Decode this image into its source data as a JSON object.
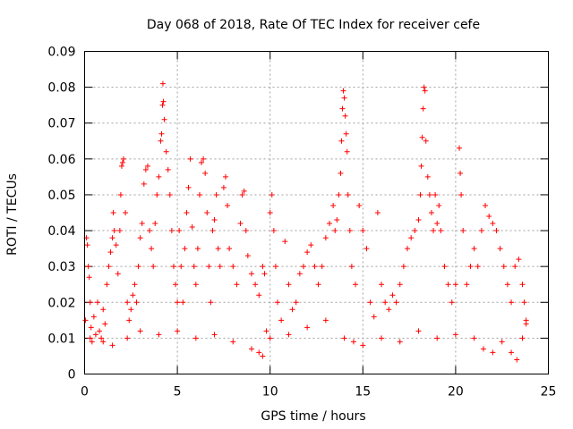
{
  "chart_data": {
    "type": "scatter",
    "title": "Day 068 of 2018, Rate Of TEC Index for receiver cefe",
    "xlabel": "GPS time / hours",
    "ylabel": "ROTI / TECUs",
    "xlim": [
      0,
      25
    ],
    "ylim": [
      0,
      0.09
    ],
    "xticks": [
      0,
      5,
      10,
      15,
      20,
      25
    ],
    "yticks": [
      0,
      0.01,
      0.02,
      0.03,
      0.04,
      0.05,
      0.06,
      0.07,
      0.08,
      0.09
    ],
    "ytick_labels": [
      "0",
      "0.01",
      "0.02",
      "0.03",
      "0.04",
      "0.05",
      "0.06",
      "0.07",
      "0.08",
      "0.09"
    ],
    "grid": true,
    "marker": "+",
    "marker_color": "#ff0000",
    "series": [
      {
        "name": "ROTI",
        "points": [
          [
            0.05,
            0.015
          ],
          [
            0.1,
            0.038
          ],
          [
            0.15,
            0.036
          ],
          [
            0.2,
            0.03
          ],
          [
            0.25,
            0.027
          ],
          [
            0.3,
            0.02
          ],
          [
            0.35,
            0.013
          ],
          [
            0.4,
            0.009
          ],
          [
            0.5,
            0.016
          ],
          [
            0.6,
            0.011
          ],
          [
            0.7,
            0.02
          ],
          [
            0.8,
            0.012
          ],
          [
            0.9,
            0.01
          ],
          [
            1.0,
            0.018
          ],
          [
            1.1,
            0.014
          ],
          [
            1.2,
            0.025
          ],
          [
            1.3,
            0.03
          ],
          [
            1.4,
            0.034
          ],
          [
            1.5,
            0.038
          ],
          [
            1.55,
            0.045
          ],
          [
            1.6,
            0.04
          ],
          [
            1.7,
            0.036
          ],
          [
            1.8,
            0.028
          ],
          [
            1.9,
            0.04
          ],
          [
            1.95,
            0.05
          ],
          [
            2.0,
            0.058
          ],
          [
            2.05,
            0.059
          ],
          [
            2.1,
            0.06
          ],
          [
            2.2,
            0.045
          ],
          [
            2.3,
            0.02
          ],
          [
            2.4,
            0.015
          ],
          [
            2.5,
            0.018
          ],
          [
            2.6,
            0.022
          ],
          [
            2.7,
            0.025
          ],
          [
            2.8,
            0.02
          ],
          [
            2.9,
            0.03
          ],
          [
            3.0,
            0.038
          ],
          [
            3.1,
            0.042
          ],
          [
            3.2,
            0.053
          ],
          [
            3.3,
            0.057
          ],
          [
            3.4,
            0.058
          ],
          [
            3.5,
            0.04
          ],
          [
            3.6,
            0.035
          ],
          [
            3.7,
            0.03
          ],
          [
            3.8,
            0.042
          ],
          [
            3.9,
            0.05
          ],
          [
            4.0,
            0.055
          ],
          [
            4.1,
            0.065
          ],
          [
            4.15,
            0.067
          ],
          [
            4.2,
            0.075
          ],
          [
            4.22,
            0.081
          ],
          [
            4.25,
            0.076
          ],
          [
            4.3,
            0.071
          ],
          [
            4.4,
            0.062
          ],
          [
            4.5,
            0.057
          ],
          [
            4.6,
            0.05
          ],
          [
            4.7,
            0.04
          ],
          [
            4.8,
            0.03
          ],
          [
            4.9,
            0.025
          ],
          [
            5.0,
            0.02
          ],
          [
            5.1,
            0.04
          ],
          [
            5.2,
            0.03
          ],
          [
            5.3,
            0.02
          ],
          [
            5.4,
            0.035
          ],
          [
            5.5,
            0.045
          ],
          [
            5.6,
            0.052
          ],
          [
            5.7,
            0.06
          ],
          [
            5.8,
            0.041
          ],
          [
            5.9,
            0.03
          ],
          [
            6.0,
            0.025
          ],
          [
            6.1,
            0.035
          ],
          [
            6.2,
            0.05
          ],
          [
            6.3,
            0.059
          ],
          [
            6.4,
            0.06
          ],
          [
            6.5,
            0.056
          ],
          [
            6.6,
            0.045
          ],
          [
            6.7,
            0.03
          ],
          [
            6.8,
            0.02
          ],
          [
            6.9,
            0.04
          ],
          [
            7.0,
            0.043
          ],
          [
            7.1,
            0.05
          ],
          [
            7.2,
            0.035
          ],
          [
            7.3,
            0.03
          ],
          [
            7.5,
            0.052
          ],
          [
            7.6,
            0.055
          ],
          [
            7.7,
            0.047
          ],
          [
            7.8,
            0.035
          ],
          [
            8.0,
            0.03
          ],
          [
            8.2,
            0.025
          ],
          [
            8.4,
            0.042
          ],
          [
            8.5,
            0.05
          ],
          [
            8.6,
            0.051
          ],
          [
            8.7,
            0.04
          ],
          [
            8.8,
            0.033
          ],
          [
            9.0,
            0.028
          ],
          [
            9.2,
            0.025
          ],
          [
            9.4,
            0.022
          ],
          [
            9.6,
            0.03
          ],
          [
            9.7,
            0.028
          ],
          [
            9.8,
            0.012
          ],
          [
            10.0,
            0.045
          ],
          [
            10.1,
            0.05
          ],
          [
            10.2,
            0.04
          ],
          [
            10.3,
            0.03
          ],
          [
            10.4,
            0.02
          ],
          [
            10.6,
            0.015
          ],
          [
            10.8,
            0.037
          ],
          [
            11.0,
            0.025
          ],
          [
            11.2,
            0.018
          ],
          [
            11.4,
            0.02
          ],
          [
            11.6,
            0.028
          ],
          [
            11.8,
            0.03
          ],
          [
            12.0,
            0.034
          ],
          [
            12.2,
            0.036
          ],
          [
            12.4,
            0.03
          ],
          [
            12.6,
            0.025
          ],
          [
            12.8,
            0.03
          ],
          [
            13.0,
            0.038
          ],
          [
            13.2,
            0.042
          ],
          [
            13.4,
            0.047
          ],
          [
            13.5,
            0.04
          ],
          [
            13.6,
            0.043
          ],
          [
            13.7,
            0.05
          ],
          [
            13.8,
            0.056
          ],
          [
            13.85,
            0.065
          ],
          [
            13.9,
            0.074
          ],
          [
            13.95,
            0.079
          ],
          [
            14.0,
            0.077
          ],
          [
            14.05,
            0.072
          ],
          [
            14.1,
            0.067
          ],
          [
            14.15,
            0.062
          ],
          [
            14.2,
            0.05
          ],
          [
            14.3,
            0.04
          ],
          [
            14.4,
            0.03
          ],
          [
            14.6,
            0.025
          ],
          [
            14.8,
            0.047
          ],
          [
            15.0,
            0.04
          ],
          [
            15.2,
            0.035
          ],
          [
            15.4,
            0.02
          ],
          [
            15.6,
            0.016
          ],
          [
            15.8,
            0.045
          ],
          [
            16.0,
            0.025
          ],
          [
            16.2,
            0.02
          ],
          [
            16.4,
            0.018
          ],
          [
            16.6,
            0.022
          ],
          [
            16.8,
            0.02
          ],
          [
            17.0,
            0.025
          ],
          [
            17.2,
            0.03
          ],
          [
            17.4,
            0.035
          ],
          [
            17.6,
            0.038
          ],
          [
            17.8,
            0.04
          ],
          [
            18.0,
            0.043
          ],
          [
            18.1,
            0.05
          ],
          [
            18.15,
            0.058
          ],
          [
            18.2,
            0.066
          ],
          [
            18.25,
            0.074
          ],
          [
            18.3,
            0.08
          ],
          [
            18.35,
            0.079
          ],
          [
            18.4,
            0.065
          ],
          [
            18.5,
            0.055
          ],
          [
            18.6,
            0.05
          ],
          [
            18.7,
            0.045
          ],
          [
            18.8,
            0.04
          ],
          [
            18.9,
            0.05
          ],
          [
            19.0,
            0.042
          ],
          [
            19.1,
            0.047
          ],
          [
            19.2,
            0.04
          ],
          [
            19.4,
            0.03
          ],
          [
            19.6,
            0.025
          ],
          [
            19.8,
            0.02
          ],
          [
            20.0,
            0.025
          ],
          [
            20.2,
            0.063
          ],
          [
            20.25,
            0.056
          ],
          [
            20.3,
            0.05
          ],
          [
            20.4,
            0.04
          ],
          [
            20.6,
            0.025
          ],
          [
            20.8,
            0.03
          ],
          [
            21.0,
            0.035
          ],
          [
            21.2,
            0.03
          ],
          [
            21.4,
            0.04
          ],
          [
            21.6,
            0.047
          ],
          [
            21.8,
            0.044
          ],
          [
            22.0,
            0.042
          ],
          [
            22.2,
            0.04
          ],
          [
            22.4,
            0.035
          ],
          [
            22.6,
            0.03
          ],
          [
            22.8,
            0.025
          ],
          [
            23.0,
            0.02
          ],
          [
            23.2,
            0.03
          ],
          [
            23.4,
            0.032
          ],
          [
            23.6,
            0.025
          ],
          [
            23.7,
            0.02
          ],
          [
            0.3,
            0.01
          ],
          [
            1.0,
            0.009
          ],
          [
            1.5,
            0.008
          ],
          [
            2.3,
            0.01
          ],
          [
            3.0,
            0.012
          ],
          [
            4.0,
            0.011
          ],
          [
            5.0,
            0.012
          ],
          [
            6.0,
            0.01
          ],
          [
            7.0,
            0.011
          ],
          [
            8.0,
            0.009
          ],
          [
            9.0,
            0.007
          ],
          [
            9.4,
            0.006
          ],
          [
            9.6,
            0.005
          ],
          [
            10.0,
            0.01
          ],
          [
            11.0,
            0.011
          ],
          [
            12.0,
            0.013
          ],
          [
            13.0,
            0.015
          ],
          [
            14.0,
            0.01
          ],
          [
            14.5,
            0.009
          ],
          [
            15.0,
            0.008
          ],
          [
            16.0,
            0.01
          ],
          [
            17.0,
            0.009
          ],
          [
            18.0,
            0.012
          ],
          [
            19.0,
            0.01
          ],
          [
            20.0,
            0.011
          ],
          [
            21.0,
            0.01
          ],
          [
            21.5,
            0.007
          ],
          [
            22.0,
            0.006
          ],
          [
            22.5,
            0.009
          ],
          [
            23.0,
            0.006
          ],
          [
            23.3,
            0.004
          ],
          [
            23.6,
            0.01
          ],
          [
            23.8,
            0.014
          ],
          [
            23.8,
            0.015
          ]
        ]
      }
    ]
  }
}
